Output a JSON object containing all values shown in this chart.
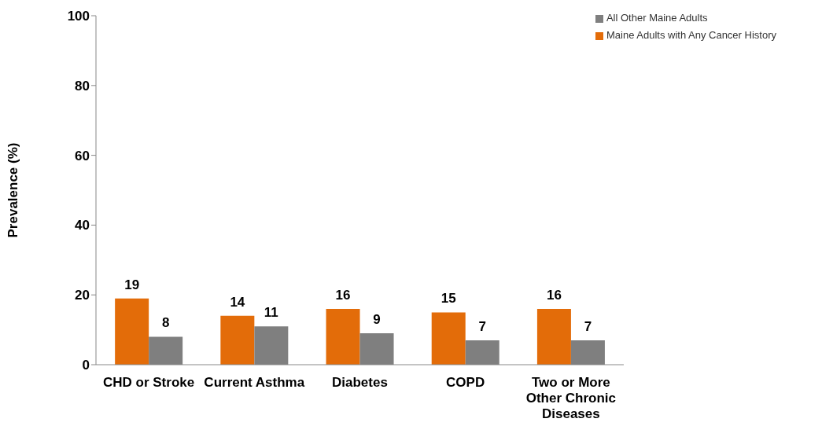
{
  "chart_data": {
    "type": "bar",
    "ylabel": "Prevalence (%)",
    "categories": [
      "CHD or Stroke",
      "Current Asthma",
      "Diabetes",
      "COPD",
      "Two or More Other Chronic Diseases"
    ],
    "series": [
      {
        "name": "Maine Adults with Any Cancer History",
        "color": "#e36c09",
        "values": [
          19,
          14,
          16,
          15,
          16
        ]
      },
      {
        "name": "All Other Maine Adults",
        "color": "#7f7f7f",
        "values": [
          8,
          11,
          9,
          7,
          7
        ]
      }
    ],
    "ylim": [
      0,
      100
    ],
    "yticks": [
      0,
      20,
      40,
      60,
      80,
      100
    ],
    "grid": false,
    "legend": "top right",
    "data_labels": true
  }
}
